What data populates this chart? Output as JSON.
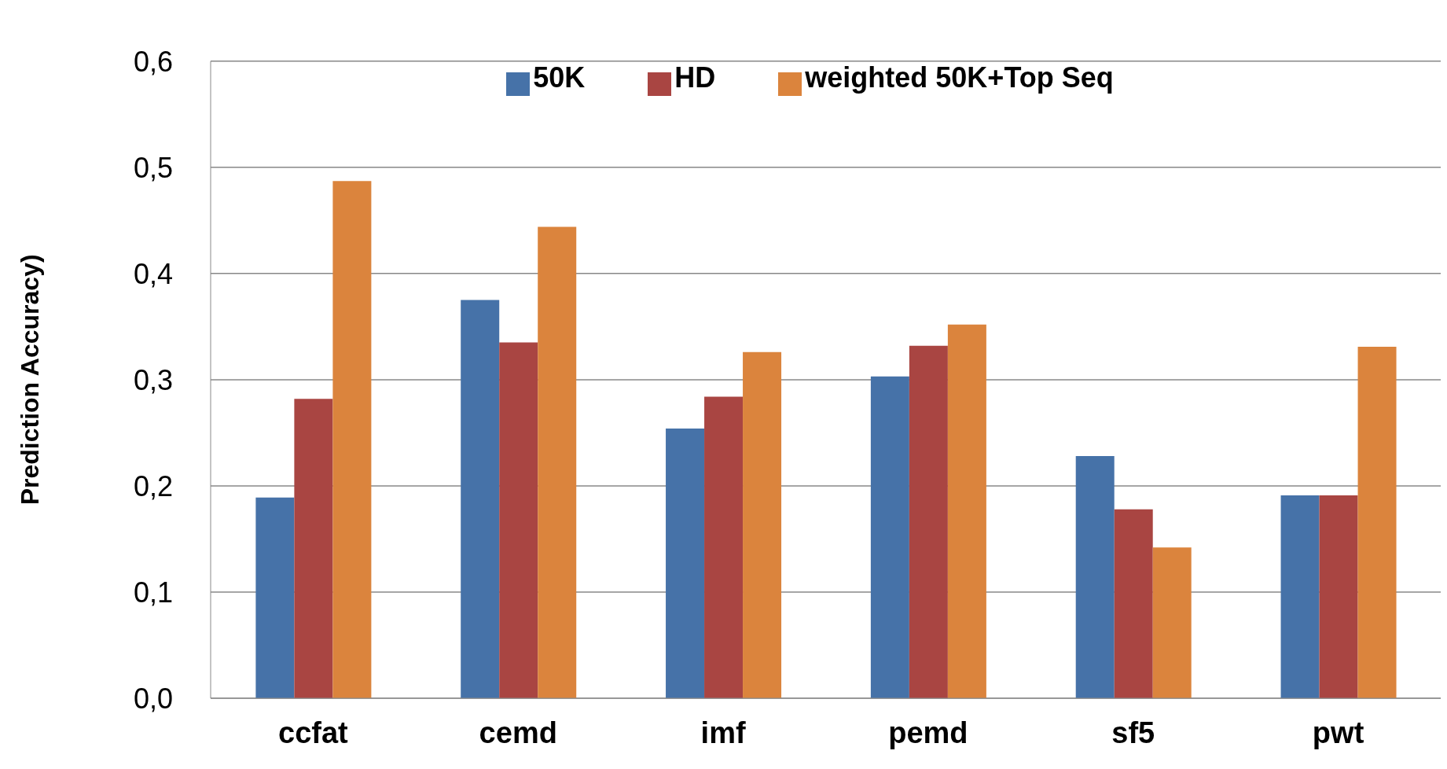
{
  "chart_data": {
    "type": "bar",
    "ylabel": "Prediction Accuracy)",
    "categories": [
      "ccfat",
      "cemd",
      "imf",
      "pemd",
      "sf5",
      "pwt"
    ],
    "series": [
      {
        "name": "50K",
        "color": "#4672a8",
        "values": [
          0.189,
          0.375,
          0.254,
          0.303,
          0.228,
          0.191
        ]
      },
      {
        "name": "HD",
        "color": "#a94542",
        "values": [
          0.282,
          0.335,
          0.284,
          0.332,
          0.178,
          0.191
        ]
      },
      {
        "name": "weighted 50K+Top Seq",
        "color": "#db843d",
        "values": [
          0.487,
          0.444,
          0.326,
          0.352,
          0.142,
          0.331
        ]
      }
    ],
    "ylim": [
      0,
      0.6
    ],
    "yticks": [
      {
        "value": 0,
        "label": "0,0"
      },
      {
        "value": 0.1,
        "label": "0,1"
      },
      {
        "value": 0.2,
        "label": "0,2"
      },
      {
        "value": 0.3,
        "label": "0,3"
      },
      {
        "value": 0.4,
        "label": "0,4"
      },
      {
        "value": 0.5,
        "label": "0,5"
      },
      {
        "value": 0.6,
        "label": "0,6"
      }
    ],
    "grid": "y",
    "legend": "top"
  }
}
